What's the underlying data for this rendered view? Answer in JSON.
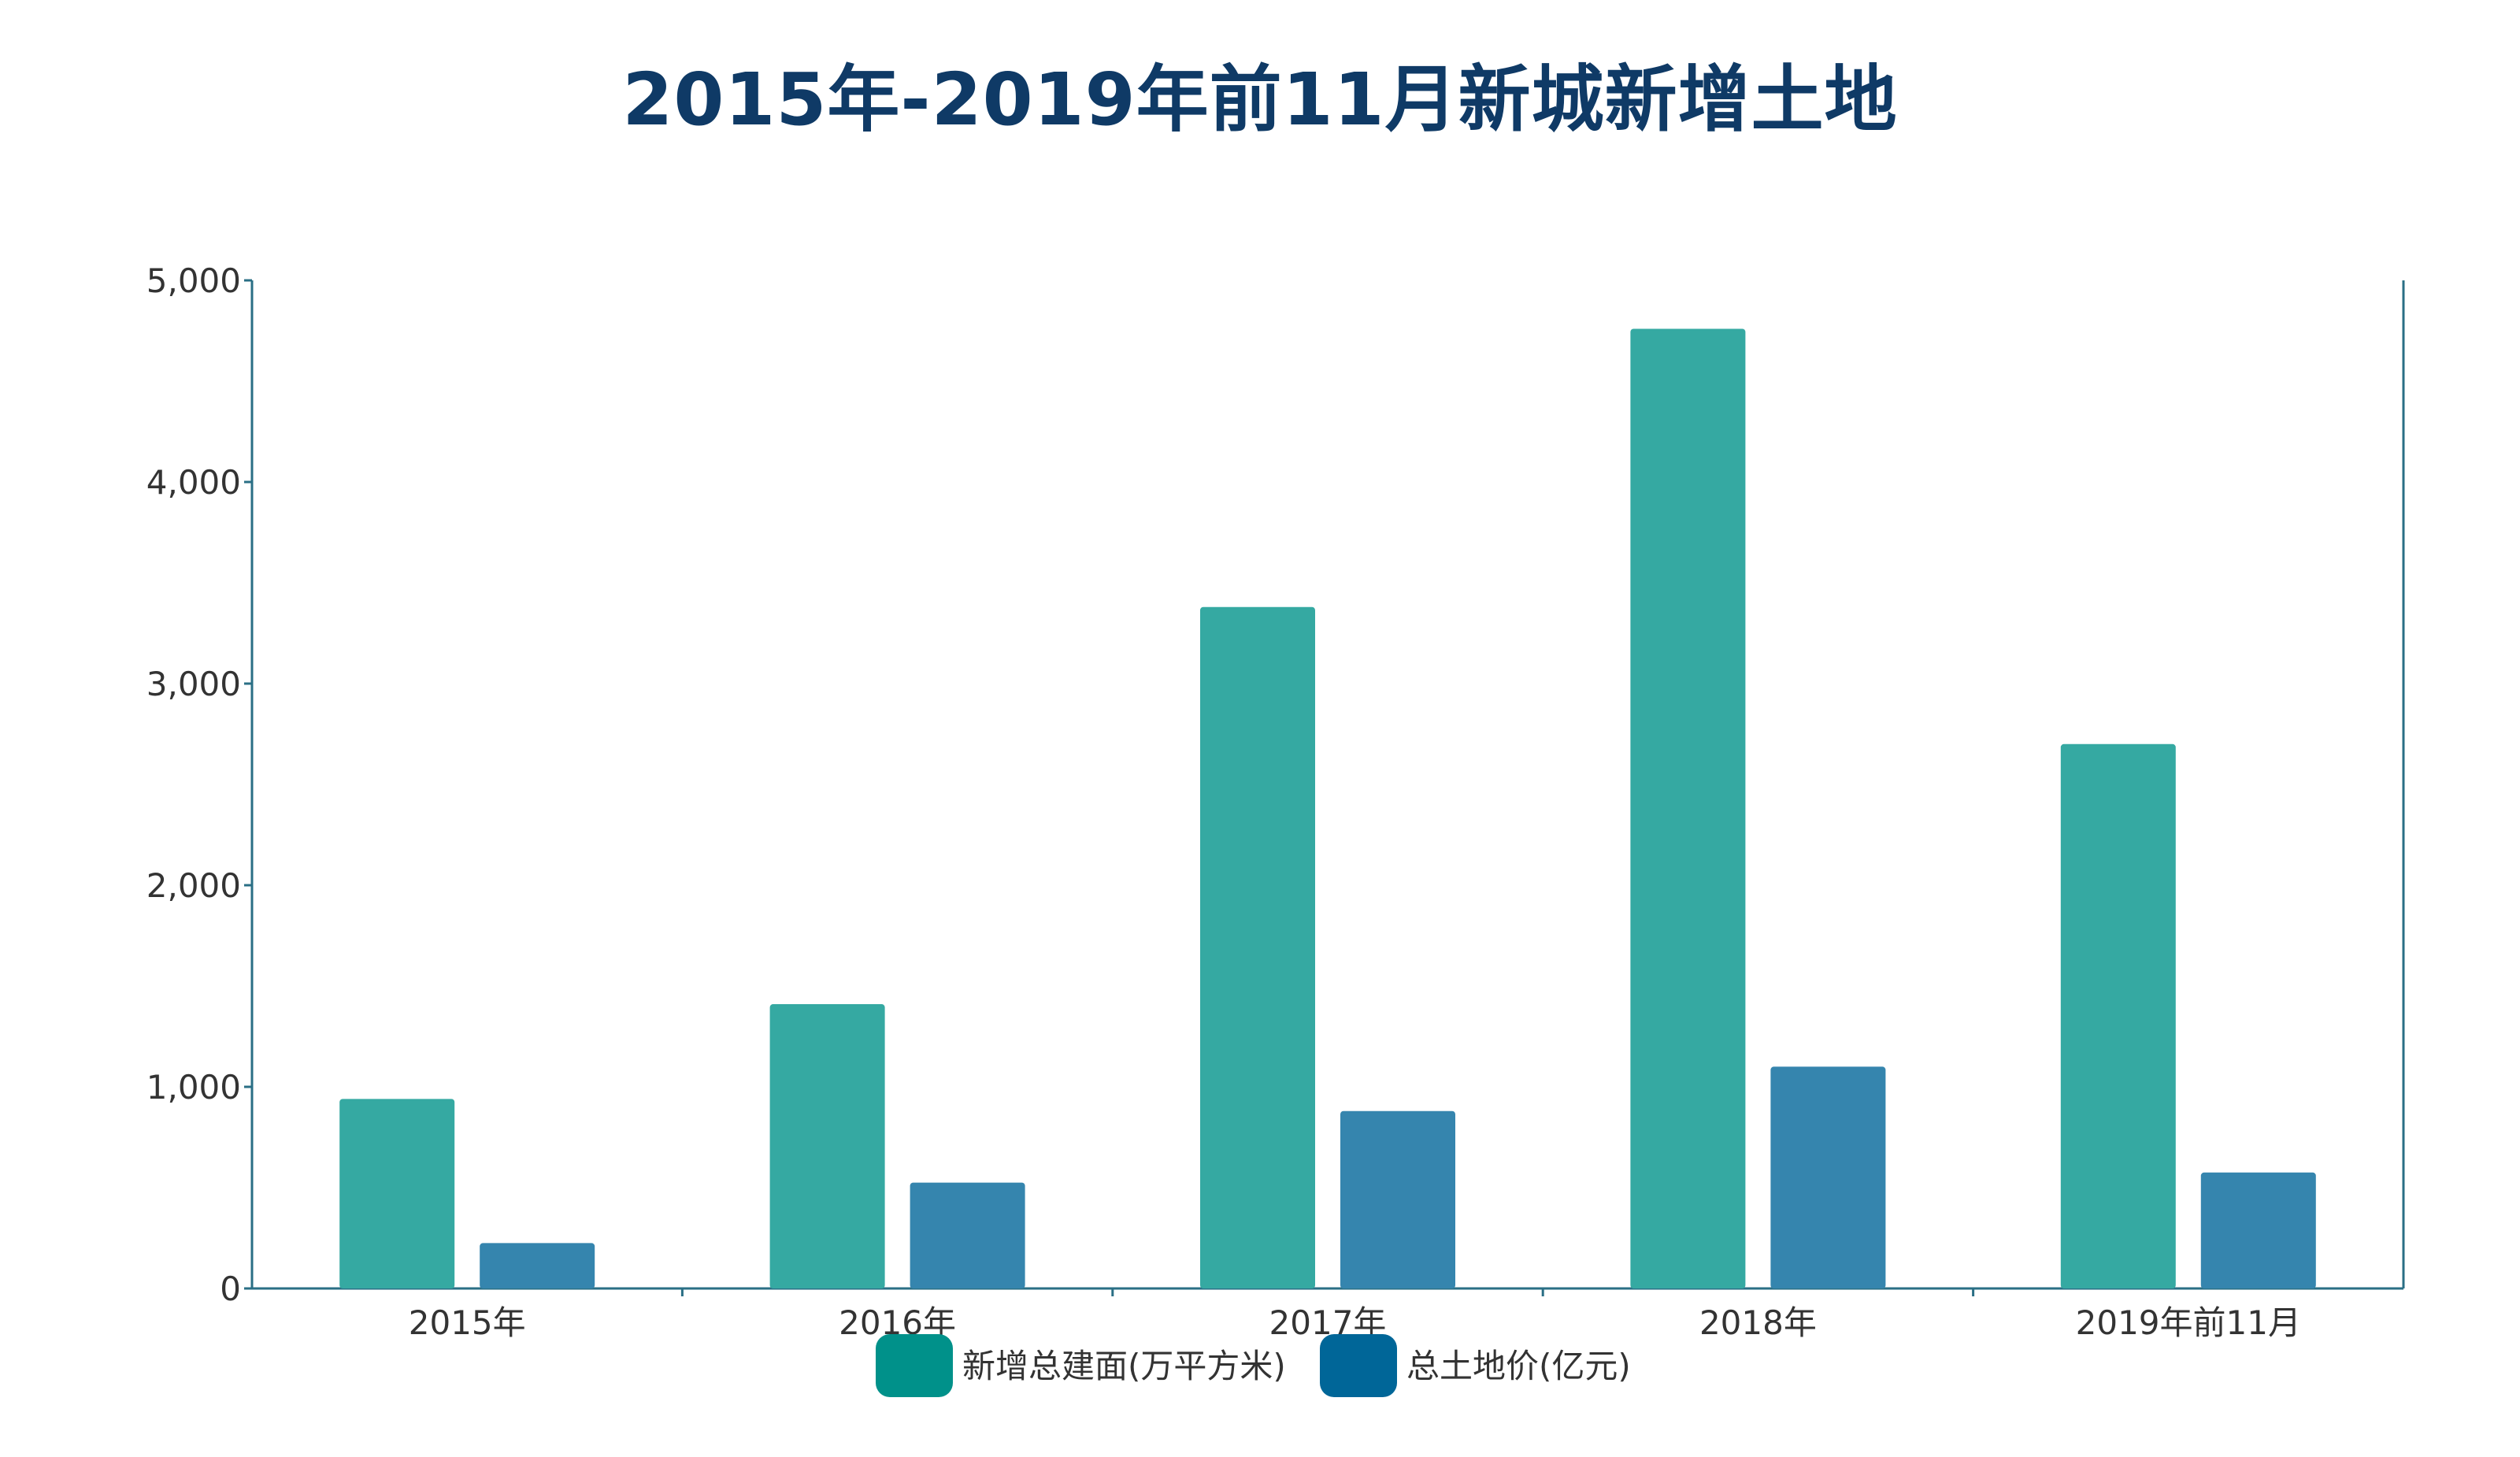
{
  "colors": {
    "title": "#0f3a66",
    "axis": "#2a6f85",
    "text": "#333333"
  },
  "chart_data": {
    "type": "bar",
    "title": "2015年-2019年前11月新城新增土地",
    "xlabel": "",
    "ylabel": "",
    "categories": [
      "2015年",
      "2016年",
      "2017年",
      "2018年",
      "2019年前11月"
    ],
    "series": [
      {
        "name": "新增总建面(万平方米)",
        "values": [
          940,
          1410,
          3380,
          4760,
          2700
        ],
        "bar_color": "#35a9a2",
        "legend_color": "#00918a"
      },
      {
        "name": "总土地价(亿元)",
        "values": [
          225,
          525,
          880,
          1100,
          575
        ],
        "bar_color": "#3585ae",
        "legend_color": "#006698"
      }
    ],
    "ylim": [
      0,
      5000
    ],
    "yticks": [
      0,
      1000,
      2000,
      3000,
      4000,
      5000
    ],
    "ytick_labels": [
      "0",
      "1,000",
      "2,000",
      "3,000",
      "4,000",
      "5,000"
    ],
    "grid": false,
    "legend_position": "bottom-center"
  }
}
